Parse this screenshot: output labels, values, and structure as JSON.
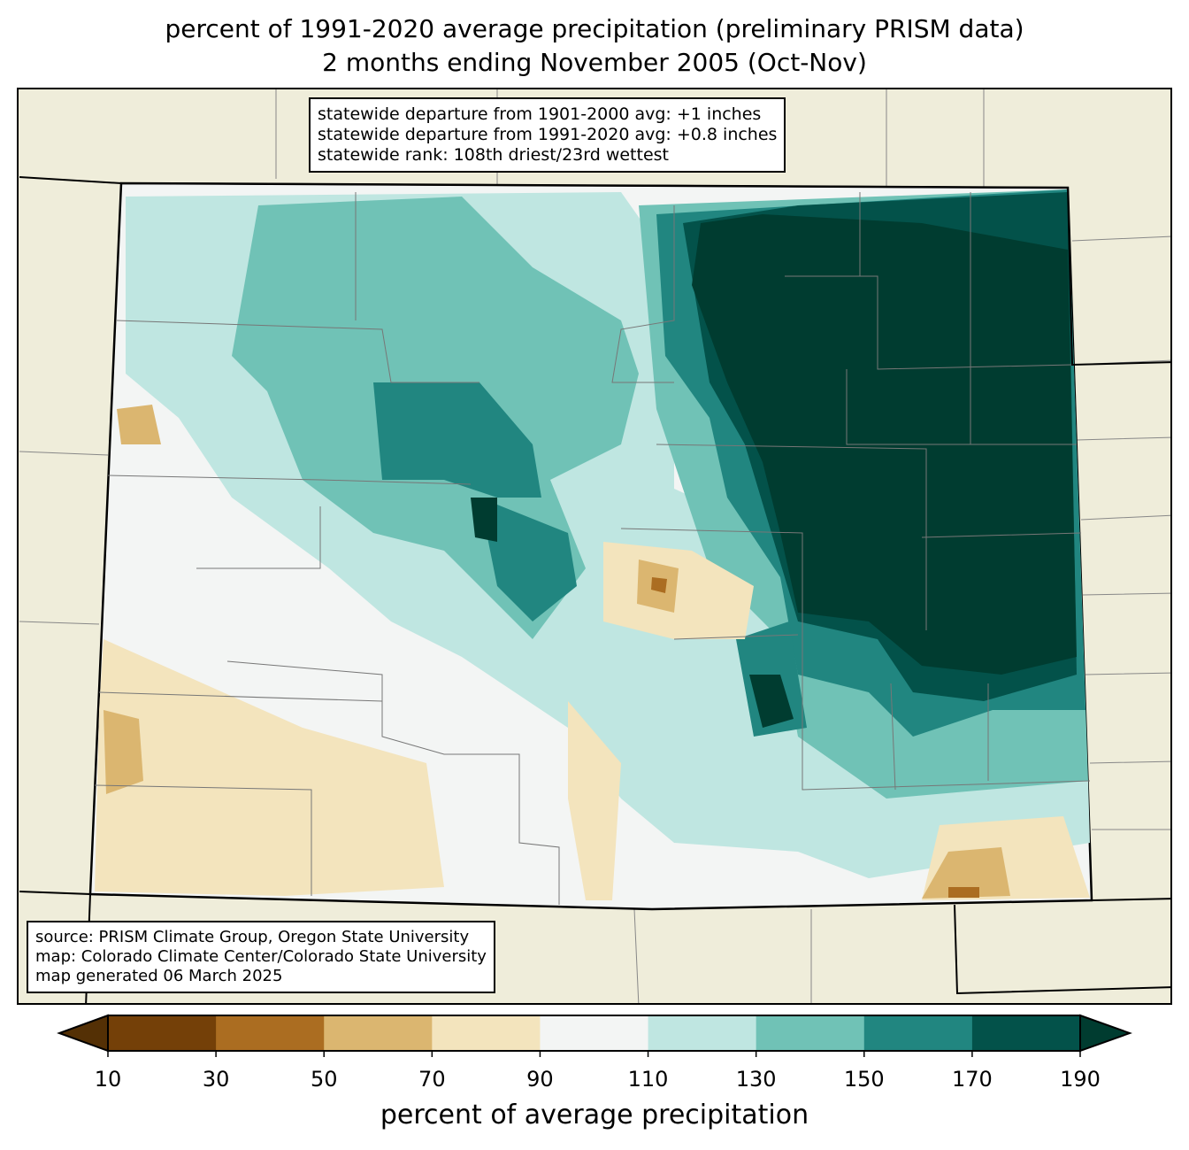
{
  "title": {
    "line1": "percent of 1991-2020 average precipitation (preliminary PRISM data)",
    "line2": "2 months ending November 2005 (Oct-Nov)"
  },
  "stats": [
    "statewide departure from 1901-2000 avg: +1 inches",
    "statewide departure from 1991-2020 avg: +0.8 inches",
    "statewide rank: 108th driest/23rd wettest"
  ],
  "source": [
    "source: PRISM Climate Group, Oregon State University",
    "map: Colorado Climate Center/Colorado State University",
    "map generated 06 March 2025"
  ],
  "colorbar": {
    "label": "percent of average precipitation",
    "ticks": [
      "10",
      "30",
      "50",
      "70",
      "90",
      "110",
      "130",
      "150",
      "170",
      "190"
    ],
    "colors": [
      "#744008",
      "#ab6d21",
      "#dbb670",
      "#f3e4bd",
      "#f3f5f4",
      "#bfe6e1",
      "#70c2b6",
      "#218680",
      "#03524a"
    ],
    "under": "#543005",
    "over": "#003c30"
  }
}
